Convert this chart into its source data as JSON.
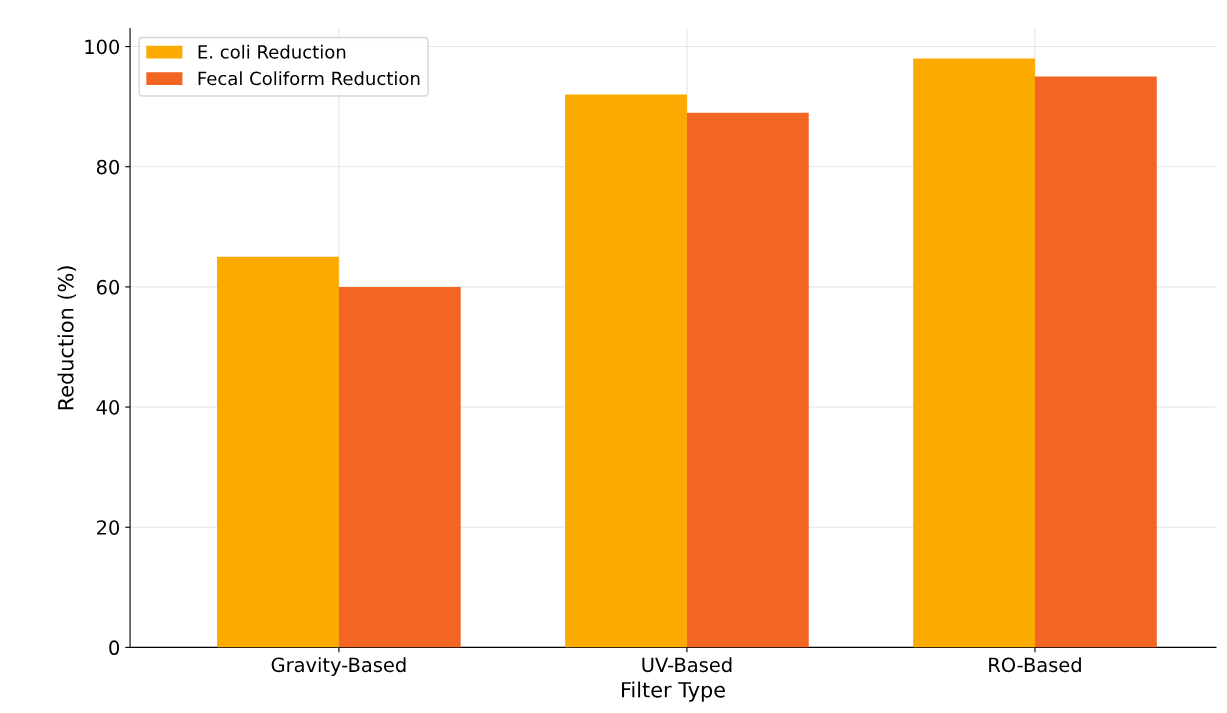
{
  "chart_data": {
    "type": "bar",
    "xlabel": "Filter Type",
    "ylabel": "Reduction (%)",
    "categories": [
      "Gravity-Based",
      "UV-Based",
      "RO-Based"
    ],
    "series": [
      {
        "name": "E. coli Reduction",
        "color": "#fbab00",
        "values": [
          65,
          92,
          98
        ]
      },
      {
        "name": "Fecal Coliform Reduction",
        "color": "#f26522",
        "values": [
          60,
          89,
          95
        ]
      }
    ],
    "ylim": [
      0,
      103
    ],
    "yticks": [
      0,
      20,
      40,
      60,
      80,
      100
    ],
    "grid": true,
    "legend": "top left"
  }
}
